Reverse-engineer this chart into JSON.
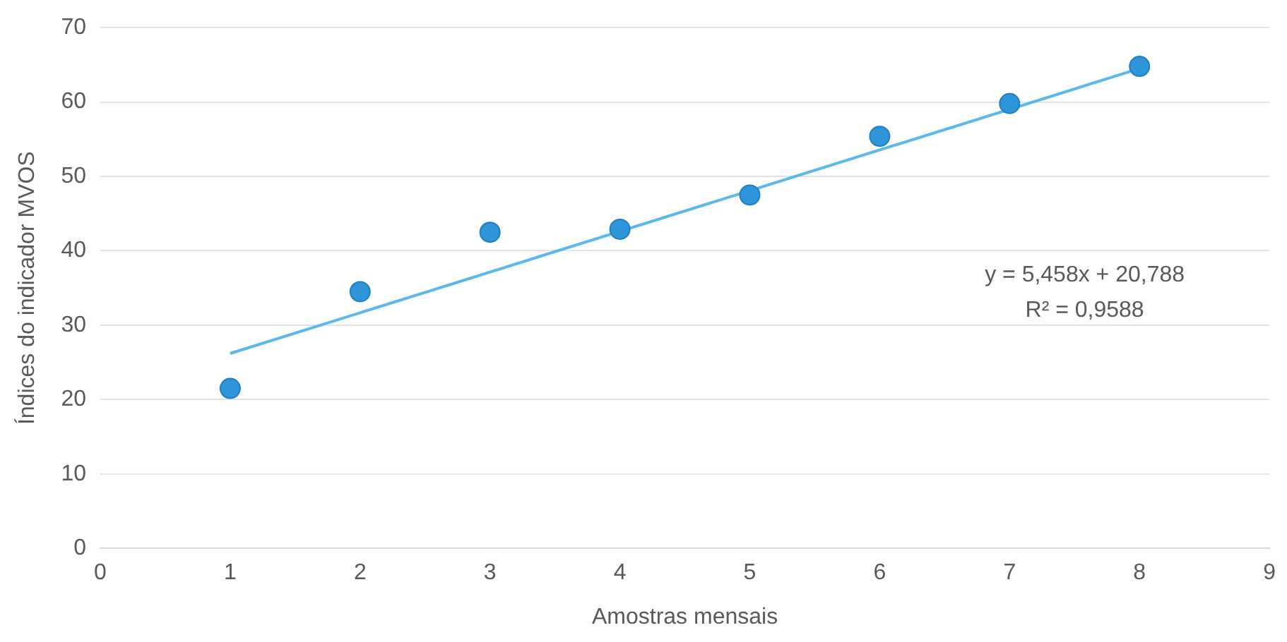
{
  "chart_data": {
    "type": "scatter",
    "xlabel": "Amostras mensais",
    "ylabel": "Índices do indicador MVOS",
    "xlim": [
      0,
      9
    ],
    "xticks": [
      0,
      1,
      2,
      3,
      4,
      5,
      6,
      7,
      8,
      9
    ],
    "ylim": [
      0,
      70
    ],
    "yticks": [
      0,
      10,
      20,
      30,
      40,
      50,
      60,
      70
    ],
    "grid": "y",
    "legend": false,
    "marker": "circle",
    "series": [
      {
        "color": "#2e95d8",
        "x": [
          1,
          2,
          3,
          4,
          5,
          6,
          7,
          8
        ],
        "values": [
          21.5,
          34.5,
          42.5,
          42.9,
          47.5,
          55.4,
          59.8,
          64.8
        ]
      },
      {
        "type": "line",
        "color": "#5ab8ea",
        "marker": "none",
        "x": [
          1,
          8
        ],
        "values": [
          26.2,
          64.5
        ]
      }
    ],
    "annotations": [
      "y = 5,458x + 20,788",
      "R² = 0,9588"
    ]
  }
}
